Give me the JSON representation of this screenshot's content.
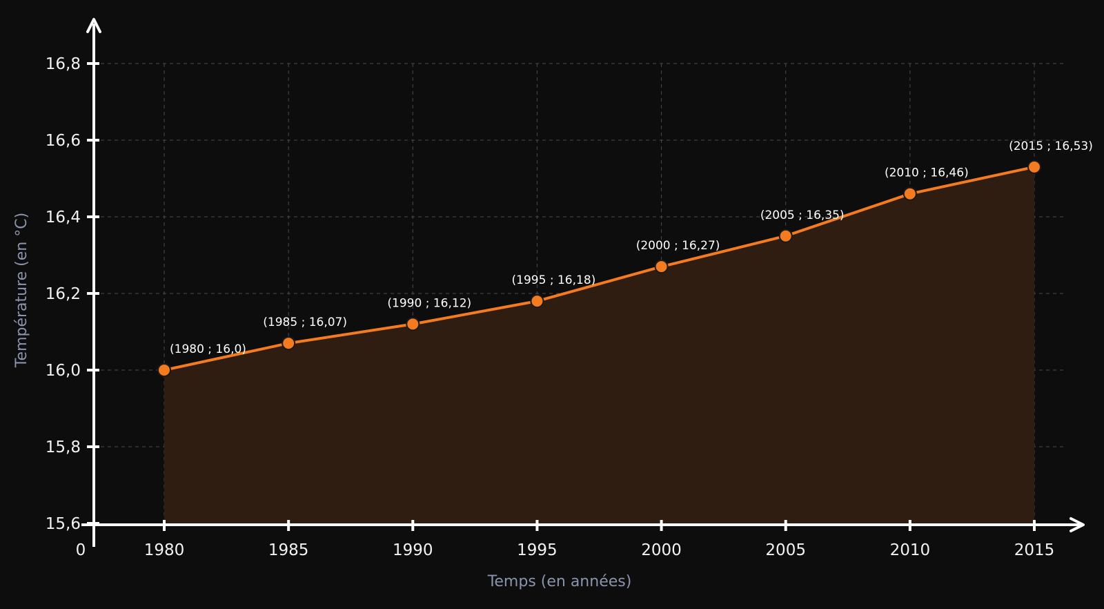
{
  "chart_data": {
    "type": "area",
    "xlabel": "Temps (en années)",
    "ylabel": "Température (en °C)",
    "origin_label": "0",
    "x_ticks": [
      1980,
      1985,
      1990,
      1995,
      2000,
      2005,
      2010,
      2015
    ],
    "y_ticks": [
      "15,6",
      "15,8",
      "16,0",
      "16,2",
      "16,4",
      "16,6",
      "16,8"
    ],
    "y_tick_values": [
      15.6,
      15.8,
      16.0,
      16.2,
      16.4,
      16.6,
      16.8
    ],
    "xlim": [
      1977,
      2015.5
    ],
    "ylim": [
      15.6,
      16.8
    ],
    "grid": true,
    "series": [
      {
        "x": [
          1980,
          1985,
          1990,
          1995,
          2000,
          2005,
          2010,
          2015
        ],
        "y": [
          16.0,
          16.07,
          16.12,
          16.18,
          16.27,
          16.35,
          16.46,
          16.53
        ],
        "labels": [
          "(1980 ; 16,0)",
          "(1985 ; 16,07)",
          "(1990 ; 16,12)",
          "(1995 ; 16,18)",
          "(2000 ; 16,27)",
          "(2005 ; 16,35)",
          "(2010 ; 16,46)",
          "(2015 ; 16,53)"
        ],
        "color": "#f47b20",
        "fill_color": "#2e1d10"
      }
    ],
    "colors": {
      "background": "#0d0d0d",
      "axis": "#ffffff",
      "grid": "#4a4a4a",
      "tick_text": "#f2f2f2",
      "axis_title": "#8a94ac"
    }
  }
}
